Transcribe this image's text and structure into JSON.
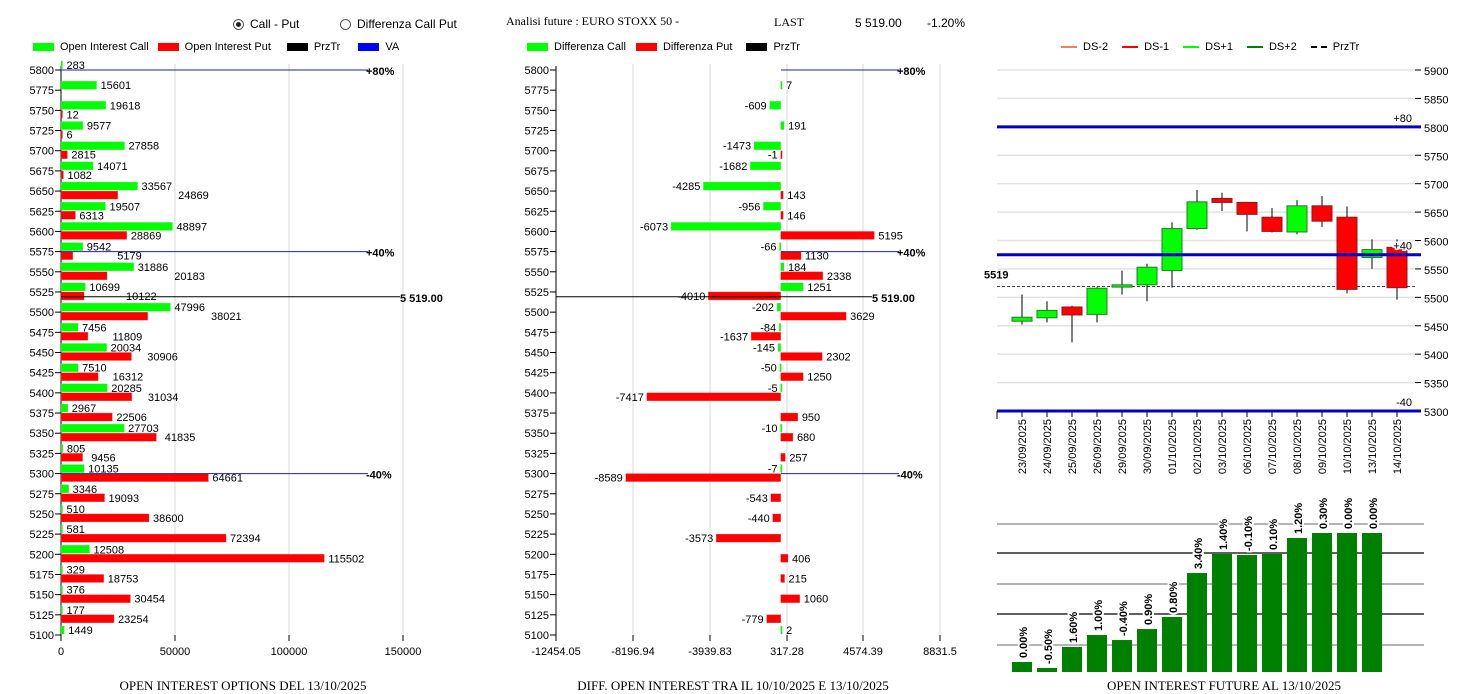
{
  "header": {
    "radio_options": [
      {
        "label": "Call - Put",
        "selected": true
      },
      {
        "label": "Differenza Call Put",
        "selected": false
      }
    ],
    "title": "Analisi future : EURO STOXX 50 -",
    "last_label": "LAST",
    "last_value": "5 519.00",
    "change": "-1.20%"
  },
  "colors": {
    "call": "#00ff00",
    "put": "#ff0000",
    "prztr": "#000000",
    "va": "#0000ff",
    "bar_future": "#008000"
  },
  "chart_data": [
    {
      "type": "bar",
      "orientation": "horizontal",
      "title": "OPEN INTEREST OPTIONS DEL 13/10/2025",
      "legend": [
        {
          "name": "Open Interest Call",
          "color": "#00ff00"
        },
        {
          "name": "Open Interest Put",
          "color": "#ff0000"
        },
        {
          "name": "PrzTr",
          "color": "#000000"
        },
        {
          "name": "VA",
          "color": "#0000ff"
        }
      ],
      "categories": [
        5800,
        5775,
        5750,
        5725,
        5700,
        5675,
        5650,
        5625,
        5600,
        5575,
        5550,
        5525,
        5500,
        5475,
        5450,
        5425,
        5400,
        5375,
        5350,
        5325,
        5300,
        5275,
        5250,
        5225,
        5200,
        5175,
        5150,
        5125,
        5100
      ],
      "series": [
        {
          "name": "Open Interest Call",
          "values": [
            283,
            15601,
            19618,
            9577,
            27858,
            14071,
            33567,
            19507,
            48897,
            9542,
            31886,
            10699,
            47996,
            7456,
            20034,
            7510,
            20285,
            2967,
            27703,
            805,
            10135,
            3346,
            510,
            581,
            12508,
            329,
            376,
            177,
            1449
          ]
        },
        {
          "name": "Open Interest Put",
          "values": [
            null,
            null,
            12,
            6,
            2815,
            1082,
            24869,
            6313,
            28869,
            5179,
            20183,
            10122,
            38021,
            11809,
            30906,
            16312,
            31034,
            22506,
            41835,
            9456,
            64661,
            19093,
            38600,
            72394,
            115502,
            18753,
            30454,
            23254,
            null
          ]
        }
      ],
      "xlim": [
        0,
        150000
      ],
      "xticks": [
        "0",
        "50000",
        "100000",
        "150000"
      ],
      "prztr": {
        "value": 5519,
        "label": "5 519.00"
      },
      "va_lines": [
        {
          "value": 5800,
          "label": "+80%"
        },
        {
          "value": 5575,
          "label": "+40%"
        },
        {
          "value": 5300,
          "label": "-40%"
        }
      ],
      "grid": true
    },
    {
      "type": "bar",
      "orientation": "horizontal",
      "title": "DIFF. OPEN INTEREST TRA IL 10/10/2025 E 13/10/2025",
      "legend": [
        {
          "name": "Differenza Call",
          "color": "#00ff00"
        },
        {
          "name": "Differenza Put",
          "color": "#ff0000"
        },
        {
          "name": "PrzTr",
          "color": "#000000"
        }
      ],
      "categories": [
        5800,
        5775,
        5750,
        5725,
        5700,
        5675,
        5650,
        5625,
        5600,
        5575,
        5550,
        5525,
        5500,
        5475,
        5450,
        5425,
        5400,
        5375,
        5350,
        5325,
        5300,
        5275,
        5250,
        5225,
        5200,
        5175,
        5150,
        5125,
        5100
      ],
      "series": [
        {
          "name": "Differenza Call",
          "values": [
            null,
            7,
            -609,
            191,
            -1473,
            -1682,
            -4285,
            -956,
            -6073,
            -66,
            184,
            1251,
            -202,
            -84,
            -145,
            -50,
            -5,
            null,
            -10,
            null,
            -7,
            null,
            null,
            null,
            null,
            null,
            null,
            null,
            2
          ]
        },
        {
          "name": "Differenza Put",
          "values": [
            null,
            null,
            null,
            null,
            -1,
            null,
            143,
            146,
            5195,
            1130,
            2338,
            -4010,
            3629,
            -1637,
            2302,
            1250,
            -7417,
            950,
            680,
            257,
            -8589,
            -543,
            -440,
            -3573,
            406,
            215,
            1060,
            -779,
            null
          ]
        }
      ],
      "xlim": [
        -12454.05,
        8831.5
      ],
      "xticks": [
        "-12454.05",
        "-8196.94",
        "-3939.83",
        "317.28",
        "4574.39",
        "8831.5"
      ],
      "prztr": {
        "value": 5519,
        "label": "5 519.00"
      },
      "va_lines": [
        {
          "value": 5800,
          "label": "+80%"
        },
        {
          "value": 5575,
          "label": "+40%"
        },
        {
          "value": 5300,
          "label": "-40%"
        }
      ],
      "grid": true
    },
    {
      "type": "candlestick",
      "legend": [
        {
          "name": "DS-2",
          "color": "#f08060",
          "style": "solid"
        },
        {
          "name": "DS-1",
          "color": "#ff0000",
          "style": "solid"
        },
        {
          "name": "DS+1",
          "color": "#00ff00",
          "style": "solid"
        },
        {
          "name": "DS+2",
          "color": "#008000",
          "style": "solid"
        },
        {
          "name": "PrzTr",
          "color": "#000000",
          "style": "dashed"
        }
      ],
      "dates": [
        "23/09/2025",
        "24/09/2025",
        "25/09/2025",
        "26/09/2025",
        "29/09/2025",
        "30/09/2025",
        "01/10/2025",
        "02/10/2025",
        "03/10/2025",
        "06/10/2025",
        "07/10/2025",
        "08/10/2025",
        "09/10/2025",
        "10/10/2025",
        "13/10/2025",
        "14/10/2025"
      ],
      "ohlc": [
        [
          5458,
          5505,
          5452,
          5465
        ],
        [
          5464,
          5493,
          5456,
          5477
        ],
        [
          5483,
          5485,
          5421,
          5469
        ],
        [
          5470,
          5518,
          5456,
          5516
        ],
        [
          5518,
          5547,
          5505,
          5522
        ],
        [
          5522,
          5559,
          5493,
          5553
        ],
        [
          5547,
          5632,
          5517,
          5621
        ],
        [
          5621,
          5689,
          5619,
          5668
        ],
        [
          5674,
          5684,
          5652,
          5667
        ],
        [
          5667,
          5668,
          5616,
          5646
        ],
        [
          5641,
          5657,
          5614,
          5616
        ],
        [
          5615,
          5671,
          5611,
          5661
        ],
        [
          5661,
          5678,
          5624,
          5634
        ],
        [
          5641,
          5660,
          5507,
          5514
        ],
        [
          5570,
          5602,
          5550,
          5584
        ],
        [
          5588,
          5602,
          5496,
          5517
        ]
      ],
      "ylim": [
        5300,
        5900
      ],
      "yticks": [
        "5900",
        "5850",
        "5800",
        "5750",
        "5700",
        "5650",
        "5600",
        "5550",
        "5500",
        "5450",
        "5400",
        "5350",
        "5300"
      ],
      "levels": [
        {
          "value": 5800,
          "label": "+80"
        },
        {
          "value": 5575,
          "label": "+40"
        },
        {
          "value": 5300,
          "label": "-40"
        }
      ],
      "prztr": {
        "value": 5519,
        "label": "5519"
      },
      "grid": true
    },
    {
      "type": "bar",
      "title": "OPEN INTEREST FUTURE AL 13/10/2025",
      "relative_level_pct": [
        7.2,
        2.9,
        18,
        26.6,
        23,
        30.9,
        39.6,
        71.2,
        84.9,
        84.2,
        84.9,
        96.4,
        100,
        100,
        100
      ],
      "labels": [
        "0.00%",
        "-0.50%",
        "1.60%",
        "1.00%",
        "-0.40%",
        "0.90%",
        "0.80%",
        "3.40%",
        "1.40%",
        "-0.10%",
        "0.10%",
        "1.20%",
        "0.30%",
        "0.00%",
        "0.00%"
      ]
    }
  ]
}
